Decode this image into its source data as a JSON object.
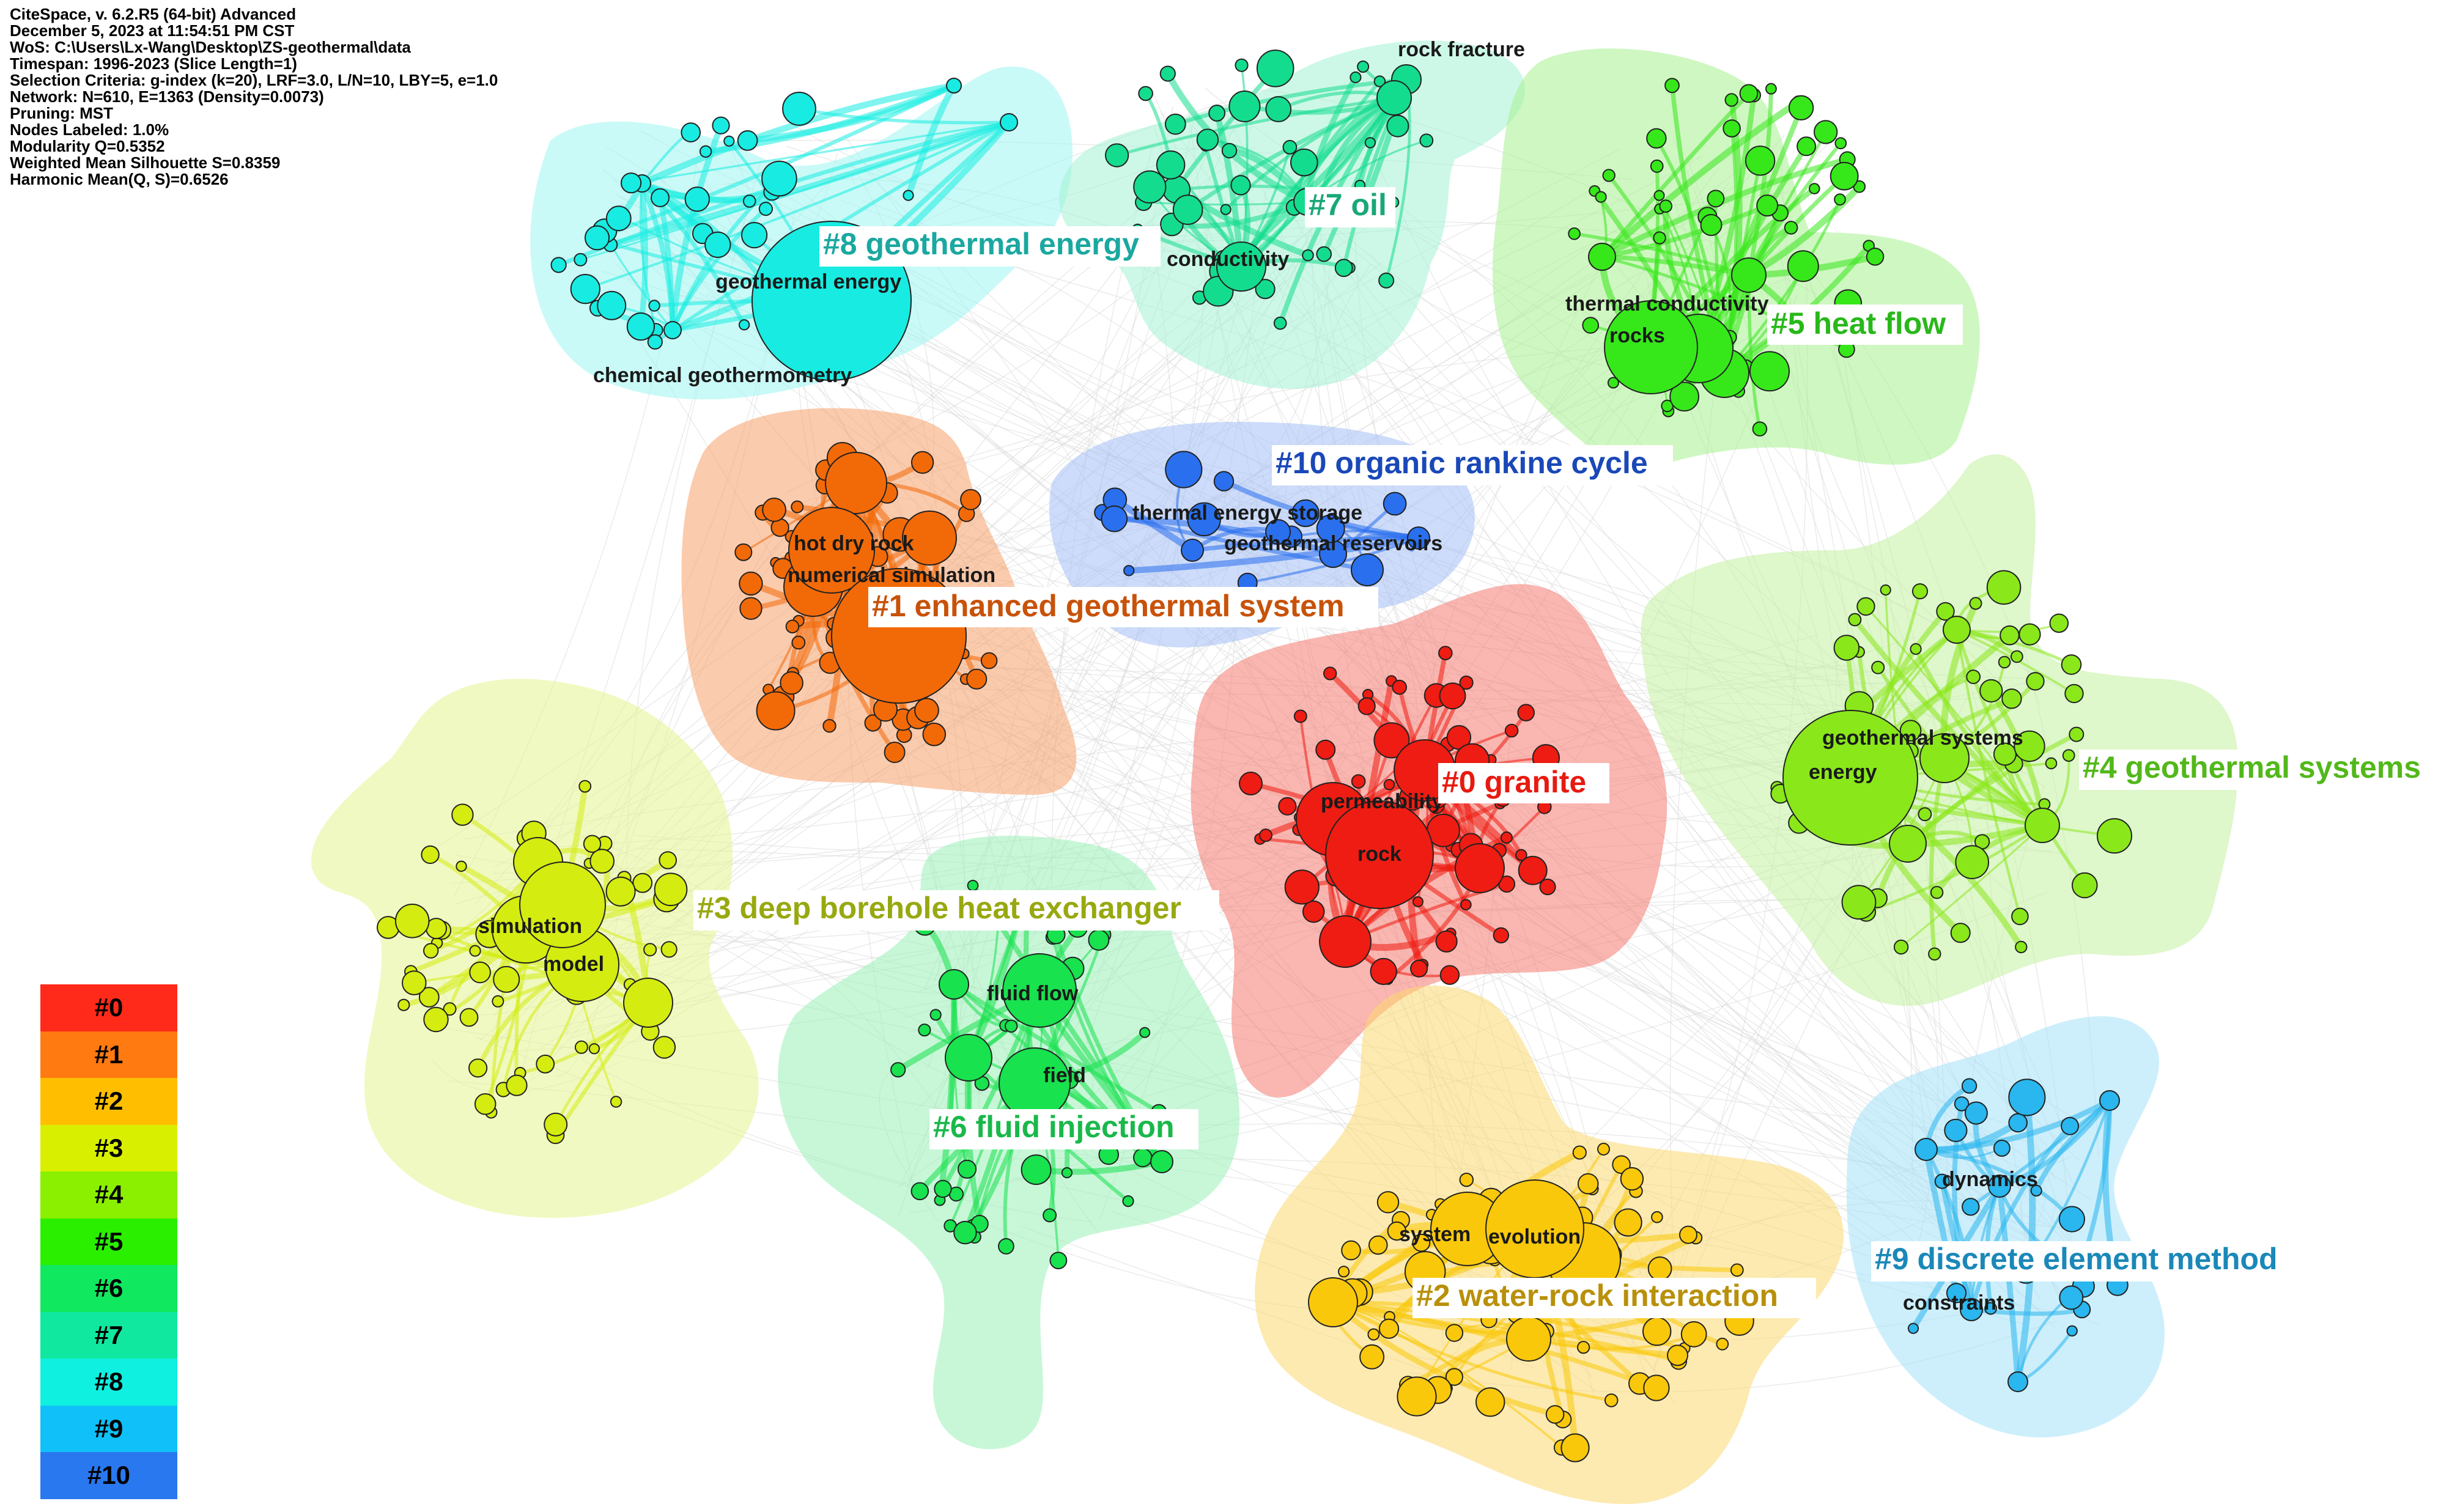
{
  "info": [
    "CiteSpace, v. 6.2.R5 (64-bit) Advanced",
    "December 5, 2023 at 11:54:51 PM CST",
    "WoS: C:\\Users\\Lx-Wang\\Desktop\\ZS-geothermal\\data",
    "Timespan: 1996-2023 (Slice Length=1)",
    "Selection Criteria: g-index (k=20), LRF=3.0, L/N=10, LBY=5, e=1.0",
    "Network: N=610, E=1363 (Density=0.0073)",
    "Pruning: MST",
    "Nodes Labeled: 1.0%",
    "Modularity Q=0.5352",
    "Weighted Mean Silhouette S=0.8359",
    "Harmonic Mean(Q, S)=0.6526"
  ],
  "legend": [
    {
      "label": "#0",
      "color": "#ff2a1a"
    },
    {
      "label": "#1",
      "color": "#ff7a10"
    },
    {
      "label": "#2",
      "color": "#ffbf00"
    },
    {
      "label": "#3",
      "color": "#d8f000"
    },
    {
      "label": "#4",
      "color": "#8af000"
    },
    {
      "label": "#5",
      "color": "#2af000"
    },
    {
      "label": "#6",
      "color": "#10e860"
    },
    {
      "label": "#7",
      "color": "#10e8a0"
    },
    {
      "label": "#8",
      "color": "#10f0e0"
    },
    {
      "label": "#9",
      "color": "#10c0f8"
    },
    {
      "label": "#10",
      "color": "#2a78f0"
    }
  ],
  "clusters": [
    {
      "id": "c0",
      "label": "#0 granite",
      "color": "#e81a10",
      "hull": "#f57a70",
      "node": "#ee1c12",
      "keywords": [
        "permeability",
        "rock"
      ]
    },
    {
      "id": "c1",
      "label": "#1 enhanced geothermal system",
      "color": "#c8520a",
      "hull": "#f7a06a",
      "node": "#f26a08",
      "keywords": [
        "hot dry rock",
        "numerical simulation"
      ]
    },
    {
      "id": "c2",
      "label": "#2 water-rock interaction",
      "color": "#b8900a",
      "hull": "#fcd870",
      "node": "#fac80a",
      "keywords": [
        "system",
        "evolution"
      ]
    },
    {
      "id": "c3",
      "label": "#3 deep borehole heat exchanger",
      "color": "#98a810",
      "hull": "#e6f490",
      "node": "#d4ec10",
      "keywords": [
        "simulation",
        "model"
      ]
    },
    {
      "id": "c4",
      "label": "#4 geothermal systems",
      "color": "#52b81a",
      "hull": "#c2f0a0",
      "node": "#8ae81a",
      "keywords": [
        "geothermal systems",
        "energy"
      ]
    },
    {
      "id": "c5",
      "label": "#5 heat flow",
      "color": "#28b81a",
      "hull": "#a8f090",
      "node": "#36e81a",
      "keywords": [
        "thermal conductivity",
        "rocks"
      ]
    },
    {
      "id": "c6",
      "label": "#6 fluid injection",
      "color": "#1ab84a",
      "hull": "#9af0b8",
      "node": "#18e24e",
      "keywords": [
        "fluid flow",
        "field"
      ]
    },
    {
      "id": "c7",
      "label": "#7 oil",
      "color": "#1aa878",
      "hull": "#a4f2d4",
      "node": "#14dc8e",
      "keywords": [
        "rock fracture",
        "conductivity"
      ]
    },
    {
      "id": "c8",
      "label": "#8 geothermal energy",
      "color": "#1aa8a0",
      "hull": "#9cf6f0",
      "node": "#18ece2",
      "keywords": [
        "geothermal energy",
        "chemical geothermometry"
      ]
    },
    {
      "id": "c9",
      "label": "#9 discrete element method",
      "color": "#1a88b8",
      "hull": "#a4e2f8",
      "node": "#2ab6ee",
      "keywords": [
        "dynamics",
        "constraints"
      ]
    },
    {
      "id": "c10",
      "label": "#10 organic rankine cycle",
      "color": "#1a48b8",
      "hull": "#a4c0f6",
      "node": "#2a70ee",
      "keywords": [
        "thermal energy storage",
        "geothermal reservoirs"
      ]
    }
  ]
}
